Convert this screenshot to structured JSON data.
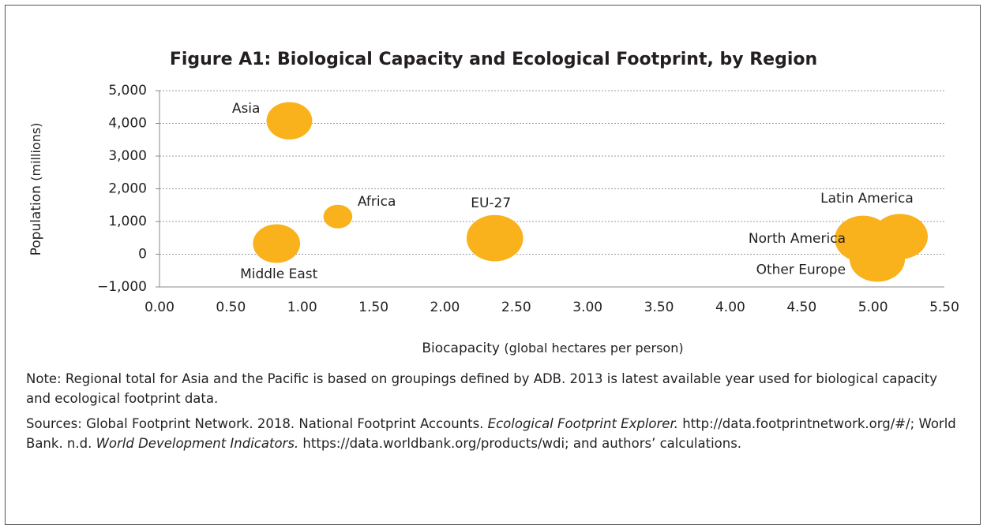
{
  "chart_data": {
    "type": "bubble",
    "title": "Figure A1: Biological Capacity and Ecological Footprint, by Region",
    "xlabel": {
      "main": "Biocapacity",
      "unit": "(global hectares per person)"
    },
    "ylabel": {
      "main": "Population",
      "unit": "(millions)"
    },
    "categories": [
      "Asia",
      "Africa",
      "Middle East",
      "EU-27",
      "North America",
      "Latin America",
      "Other Europe"
    ],
    "x": [
      0.91,
      1.25,
      0.82,
      2.35,
      4.93,
      5.19,
      5.03
    ],
    "values": [
      4080,
      1150,
      325,
      490,
      470,
      540,
      -150
    ],
    "sizes": [
      3.0,
      1.2,
      3.2,
      4.6,
      4.6,
      4.4,
      4.4
    ],
    "color": "#f9b21b",
    "xlim": [
      0,
      5.5
    ],
    "xticks": [
      {
        "value": 0,
        "label": "0.00"
      },
      {
        "value": 0.5,
        "label": "0.50"
      },
      {
        "value": 1,
        "label": "1.00"
      },
      {
        "value": 1.5,
        "label": "1.50"
      },
      {
        "value": 2,
        "label": "2.00"
      },
      {
        "value": 2.5,
        "label": "2.50"
      },
      {
        "value": 3,
        "label": "3.00"
      },
      {
        "value": 3.5,
        "label": "3.50"
      },
      {
        "value": 4,
        "label": "4.00"
      },
      {
        "value": 4.5,
        "label": "4.50"
      },
      {
        "value": 5,
        "label": "5.00"
      },
      {
        "value": 5.5,
        "label": "5.50"
      }
    ],
    "ylim": [
      -1000,
      5000
    ],
    "yticks": [
      {
        "value": -1000,
        "label": "−1,000"
      },
      0,
      {
        "value": 1000,
        "label": "1,000"
      },
      {
        "value": 2000,
        "label": "2,000"
      },
      {
        "value": 3000,
        "label": "3,000"
      },
      {
        "value": 4000,
        "label": "4,000"
      },
      {
        "value": 5000,
        "label": "5,000"
      }
    ],
    "grid": true
  },
  "note": "Note: Regional total for Asia and the Pacific is based on groupings defined by ADB. 2013 is latest available year used for biological capacity and ecological footprint data.",
  "sources": [
    {
      "text": "Sources: Global Footprint Network. 2018. National Footprint Accounts. ",
      "italic": false
    },
    {
      "text": "Ecological Footprint Explorer.",
      "italic": true
    },
    {
      "text": " http://data.footprintnetwork.org/#/; World Bank. n.d. ",
      "italic": false
    },
    {
      "text": "World Development Indicators.",
      "italic": true
    },
    {
      "text": " https://data.worldbank.org/products/wdi; and authors’ calculations.",
      "italic": false
    }
  ]
}
